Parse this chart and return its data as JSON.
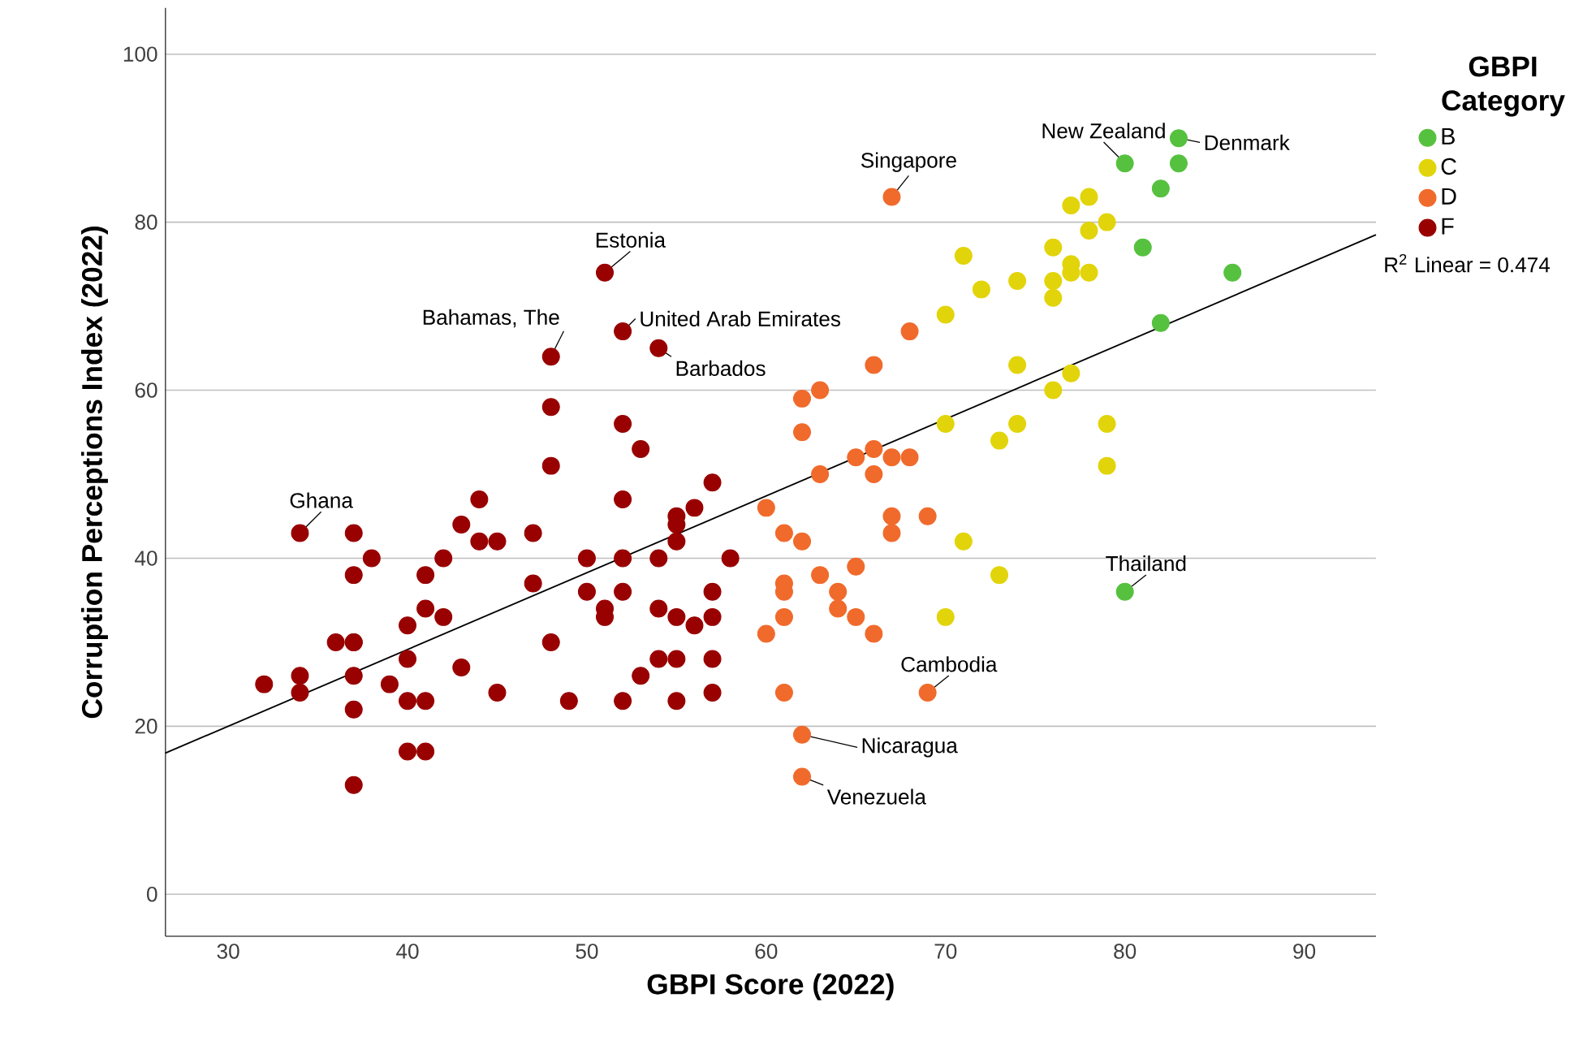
{
  "chart_data": {
    "type": "scatter",
    "xlabel": "GBPI Score (2022)",
    "ylabel": "Corruption Perceptions Index (2022)",
    "legend_title": "GBPI Category",
    "xlim": [
      26.5,
      94
    ],
    "ylim": [
      -5,
      105.5
    ],
    "xticks": [
      30,
      40,
      50,
      60,
      70,
      80,
      90
    ],
    "yticks": [
      0,
      20,
      40,
      60,
      80,
      100
    ],
    "grid": "y",
    "legend": "top right",
    "series": [
      {
        "name": "B",
        "marker": "circle",
        "color": "#56c13f",
        "x": [
          83,
          80,
          83,
          82,
          81,
          86,
          82,
          80
        ],
        "values": [
          90,
          87,
          87,
          84,
          77,
          74,
          68,
          36
        ]
      },
      {
        "name": "C",
        "marker": "circle",
        "color": "#e2d40a",
        "x": [
          77,
          78,
          79,
          78,
          71,
          76,
          77,
          77,
          78,
          76,
          74,
          72,
          76,
          70,
          74,
          77,
          76,
          70,
          74,
          73,
          79,
          79,
          71,
          73,
          70
        ],
        "values": [
          82,
          83,
          80,
          79,
          76,
          77,
          75,
          74,
          74,
          73,
          73,
          72,
          71,
          69,
          63,
          62,
          60,
          56,
          56,
          54,
          56,
          51,
          42,
          38,
          33
        ]
      },
      {
        "name": "D",
        "marker": "circle",
        "color": "#f06a2c",
        "x": [
          67,
          68,
          66,
          62,
          63,
          62,
          65,
          66,
          67,
          68,
          63,
          66,
          60,
          61,
          62,
          67,
          67,
          69,
          65,
          63,
          61,
          61,
          64,
          64,
          61,
          65,
          60,
          66,
          61,
          69,
          62,
          62
        ],
        "values": [
          83,
          67,
          63,
          59,
          60,
          55,
          52,
          53,
          52,
          52,
          50,
          50,
          46,
          43,
          42,
          45,
          43,
          45,
          39,
          38,
          37,
          36,
          36,
          34,
          33,
          33,
          31,
          31,
          24,
          24,
          19,
          14
        ]
      },
      {
        "name": "F",
        "marker": "circle",
        "color": "#990000",
        "x": [
          32,
          34,
          34,
          34,
          36,
          37,
          37,
          37,
          37,
          37,
          37,
          37,
          38,
          39,
          40,
          40,
          40,
          40,
          41,
          41,
          41,
          41,
          42,
          42,
          43,
          43,
          44,
          44,
          45,
          45,
          47,
          47,
          48,
          48,
          48,
          48,
          49,
          50,
          50,
          51,
          51,
          51,
          52,
          52,
          52,
          52,
          52,
          52,
          53,
          53,
          54,
          54,
          54,
          54,
          55,
          55,
          55,
          55,
          55,
          55,
          56,
          56,
          57,
          57,
          57,
          57,
          57,
          58
        ],
        "values": [
          25,
          26,
          24,
          43,
          30,
          43,
          38,
          30,
          26,
          22,
          13,
          30,
          40,
          25,
          32,
          28,
          23,
          17,
          38,
          34,
          23,
          17,
          40,
          33,
          44,
          27,
          47,
          42,
          42,
          24,
          43,
          37,
          64,
          58,
          51,
          30,
          23,
          40,
          36,
          74,
          34,
          33,
          67,
          56,
          47,
          40,
          36,
          23,
          53,
          26,
          65,
          40,
          34,
          28,
          45,
          44,
          42,
          33,
          23,
          28,
          46,
          32,
          49,
          36,
          33,
          28,
          24,
          40
        ]
      },
      {
        "type": "line",
        "marker": "none",
        "color": "#000000",
        "x": [
          26.5,
          94
        ],
        "values": [
          16.8,
          78.5
        ]
      }
    ],
    "annotations": [
      {
        "text": "Ghana",
        "x": 34,
        "y": 43
      },
      {
        "text": "Estonia",
        "x": 51,
        "y": 74
      },
      {
        "text": "Bahamas, The",
        "x": 48,
        "y": 64
      },
      {
        "text": "United Arab Emirates",
        "x": 52,
        "y": 67
      },
      {
        "text": "Barbados",
        "x": 54,
        "y": 65
      },
      {
        "text": "Singapore",
        "x": 67,
        "y": 83
      },
      {
        "text": "New Zealand",
        "x": 80,
        "y": 87
      },
      {
        "text": "Denmark",
        "x": 83,
        "y": 90
      },
      {
        "text": "Thailand",
        "x": 80,
        "y": 36
      },
      {
        "text": "Cambodia",
        "x": 69,
        "y": 24
      },
      {
        "text": "Nicaragua",
        "x": 62,
        "y": 19
      },
      {
        "text": "Venezuela",
        "x": 62,
        "y": 14
      },
      "R$^{2}$ Linear = 0.474"
    ]
  }
}
